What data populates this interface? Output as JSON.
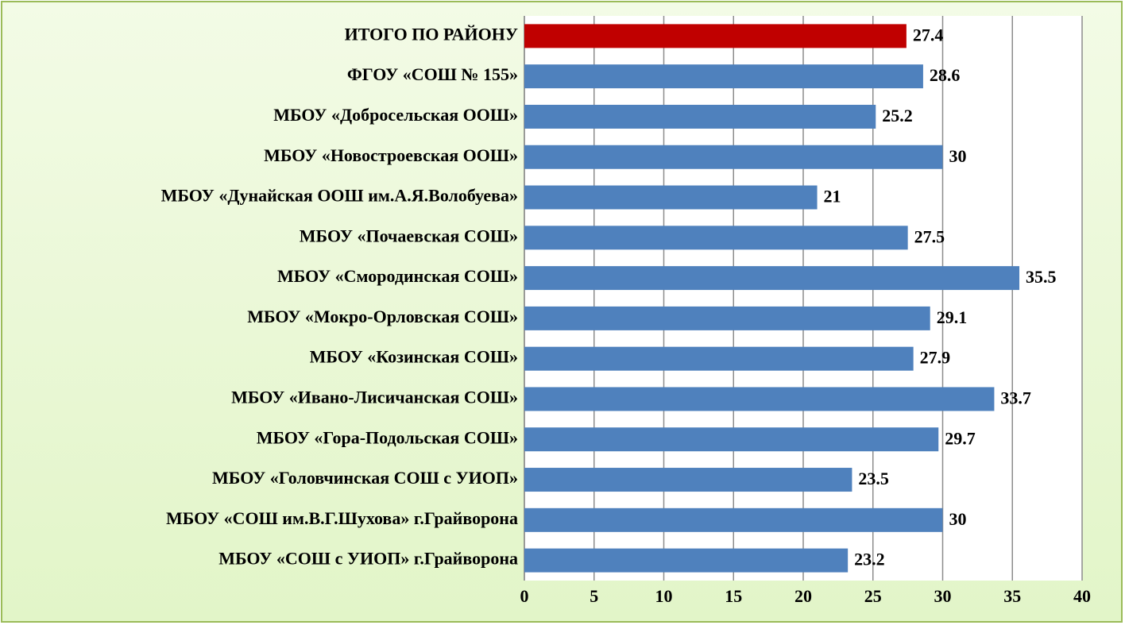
{
  "chart_data": {
    "type": "barh",
    "categories": [
      "ИТОГО ПО РАЙОНУ",
      "ФГОУ «СОШ № 155»",
      "МБОУ «Добросельская ООШ»",
      "МБОУ «Новостроевская ООШ»",
      "МБОУ «Дунайская ООШ им.А.Я.Волобуева»",
      "МБОУ «Почаевская СОШ»",
      "МБОУ «Смородинская СОШ»",
      "МБОУ «Мокро-Орловская СОШ»",
      "МБОУ «Козинская СОШ»",
      "МБОУ «Ивано-Лисичанская СОШ»",
      "МБОУ «Гора-Подольская СОШ»",
      "МБОУ «Головчинская СОШ с УИОП»",
      "МБОУ «СОШ им.В.Г.Шухова» г.Грайворона",
      "МБОУ «СОШ с УИОП» г.Грайворона"
    ],
    "values": [
      27.4,
      28.6,
      25.2,
      30,
      21,
      27.5,
      35.5,
      29.1,
      27.9,
      33.7,
      29.7,
      23.5,
      30,
      23.2
    ],
    "colors": [
      "#c00000",
      "#4f81bd",
      "#4f81bd",
      "#4f81bd",
      "#4f81bd",
      "#4f81bd",
      "#4f81bd",
      "#4f81bd",
      "#4f81bd",
      "#4f81bd",
      "#4f81bd",
      "#4f81bd",
      "#4f81bd",
      "#4f81bd"
    ],
    "xlim": [
      0,
      40
    ],
    "xticks": [
      0,
      5,
      10,
      15,
      20,
      25,
      30,
      35,
      40
    ],
    "grid": true
  }
}
